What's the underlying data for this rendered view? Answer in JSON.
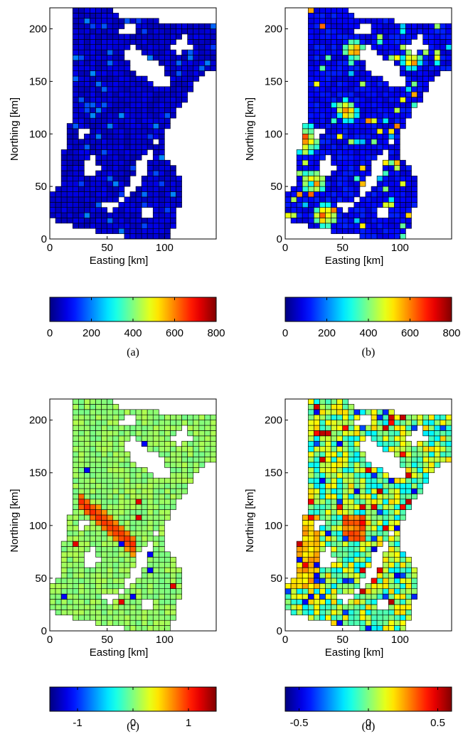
{
  "chart_data": [
    {
      "panel": "a",
      "type": "heatmap",
      "caption": "(a)",
      "xlabel": "Easting [km]",
      "ylabel": "Northing [km]",
      "xlim": [
        0,
        145
      ],
      "ylim": [
        0,
        220
      ],
      "xticks": [
        0,
        50,
        100
      ],
      "yticks": [
        0,
        50,
        100,
        150,
        200
      ],
      "grid_cell_km": 5,
      "colormap": "jet",
      "clim": [
        0,
        800
      ],
      "colorbar_ticks": [
        0,
        200,
        400,
        600,
        800
      ],
      "colorbar_ticklabels": [
        "0",
        "200",
        "400",
        "600",
        "800"
      ],
      "pattern": "low",
      "value_range_estimate": [
        0,
        150
      ]
    },
    {
      "panel": "b",
      "type": "heatmap",
      "caption": "(b)",
      "xlabel": "Easting [km]",
      "ylabel": "Northing [km]",
      "xlim": [
        0,
        145
      ],
      "ylim": [
        0,
        220
      ],
      "xticks": [
        0,
        50,
        100
      ],
      "yticks": [
        0,
        50,
        100,
        150,
        200
      ],
      "grid_cell_km": 5,
      "colormap": "jet",
      "clim": [
        0,
        800
      ],
      "colorbar_ticks": [
        0,
        200,
        400,
        600,
        800
      ],
      "colorbar_ticklabels": [
        "0",
        "200",
        "400",
        "600",
        "800"
      ],
      "pattern": "hotspots",
      "value_range_estimate": [
        0,
        800
      ]
    },
    {
      "panel": "c",
      "type": "heatmap",
      "caption": "(c)",
      "xlabel": "Easting [km]",
      "ylabel": "Northing [km]",
      "xlim": [
        0,
        145
      ],
      "ylim": [
        0,
        220
      ],
      "xticks": [
        0,
        50,
        100
      ],
      "yticks": [
        0,
        50,
        100,
        150,
        200
      ],
      "grid_cell_km": 5,
      "colormap": "jet",
      "clim": [
        -1.5,
        1.5
      ],
      "colorbar_ticks": [
        -1,
        0,
        1
      ],
      "colorbar_ticklabels": [
        "-1",
        "0",
        "1"
      ],
      "pattern": "band",
      "value_range_estimate": [
        -1.5,
        1.5
      ]
    },
    {
      "panel": "d",
      "type": "heatmap",
      "caption": "(d)",
      "xlabel": "Easting [km]",
      "ylabel": "Northing [km]",
      "xlim": [
        0,
        145
      ],
      "ylim": [
        0,
        220
      ],
      "xticks": [
        0,
        50,
        100
      ],
      "yticks": [
        0,
        50,
        100,
        150,
        200
      ],
      "grid_cell_km": 5,
      "colormap": "jet",
      "clim": [
        -0.6,
        0.6
      ],
      "colorbar_ticks": [
        -0.5,
        0,
        0.5
      ],
      "colorbar_ticklabels": [
        "-0.5",
        "0",
        "0.5"
      ],
      "pattern": "mixed",
      "value_range_estimate": [
        -0.6,
        0.6
      ]
    }
  ]
}
